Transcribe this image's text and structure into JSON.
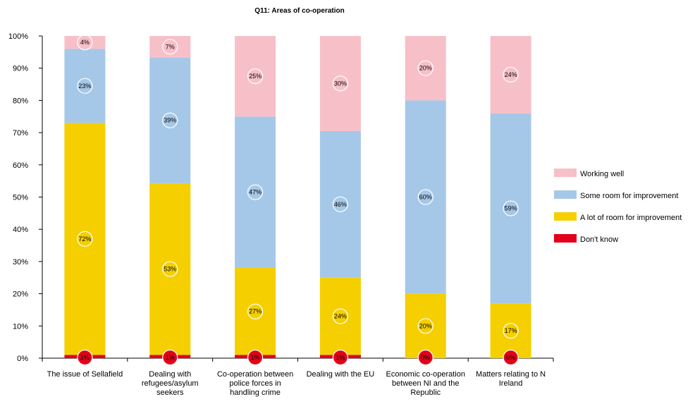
{
  "chart_data": {
    "type": "bar",
    "stacked": true,
    "title": "Q11: Areas of co-operation",
    "categories": [
      "The issue of Sellafield",
      "Dealing with refugees/asylum seekers",
      "Co-operation between police forces in handling crime",
      "Dealing with the EU",
      "Economic co-operation between NI and the Republic",
      "Matters relating to N Ireland"
    ],
    "category_lines": [
      [
        "The issue of Sellafield"
      ],
      [
        "Dealing with",
        "refugees/asylum",
        "seekers"
      ],
      [
        "Co-operation between",
        "police forces in",
        "handling crime"
      ],
      [
        "Dealing with the EU"
      ],
      [
        "Economic co-operation",
        "between NI and the",
        "Republic"
      ],
      [
        "Matters relating to N",
        "Ireland"
      ]
    ],
    "series": [
      {
        "name": "Don't know",
        "color": "#e2001a",
        "values": [
          1,
          1,
          1,
          1,
          0,
          0
        ],
        "plot": [
          1,
          1,
          1,
          1,
          0,
          0
        ],
        "labels": [
          "1%",
          "1%",
          "1%",
          "1%",
          "0%",
          "0%"
        ]
      },
      {
        "name": "A lot of room for improvement",
        "color": "#f5cf00",
        "values": [
          72,
          53,
          27,
          24,
          20,
          17
        ],
        "plot": [
          72,
          53.3,
          27,
          24,
          20,
          17
        ],
        "labels": [
          "72%",
          "53%",
          "27%",
          "24%",
          "20%",
          "17%"
        ]
      },
      {
        "name": "Some room for improvement",
        "color": "#a6c8e8",
        "values": [
          23,
          39,
          47,
          46,
          60,
          59
        ],
        "plot": [
          23,
          39,
          47,
          45.5,
          60,
          59
        ],
        "labels": [
          "23%",
          "39%",
          "47%",
          "46%",
          "60%",
          "59%"
        ]
      },
      {
        "name": "Working well",
        "color": "#f7c0c8",
        "values": [
          4,
          7,
          25,
          30,
          20,
          24
        ],
        "plot": [
          4,
          6.7,
          25,
          29.5,
          20,
          24
        ],
        "labels": [
          "4%",
          "7%",
          "25%",
          "30%",
          "20%",
          "24%"
        ]
      }
    ],
    "legend_order": [
      "Working well",
      "Some room for improvement",
      "A lot of room for improvement",
      "Don't know"
    ],
    "y_ticks": [
      "0%",
      "10%",
      "20%",
      "30%",
      "40%",
      "50%",
      "60%",
      "70%",
      "80%",
      "90%",
      "100%"
    ],
    "ylim": [
      0,
      100
    ],
    "ylabel": "",
    "xlabel": "",
    "grid": false,
    "legend_position": "right"
  }
}
